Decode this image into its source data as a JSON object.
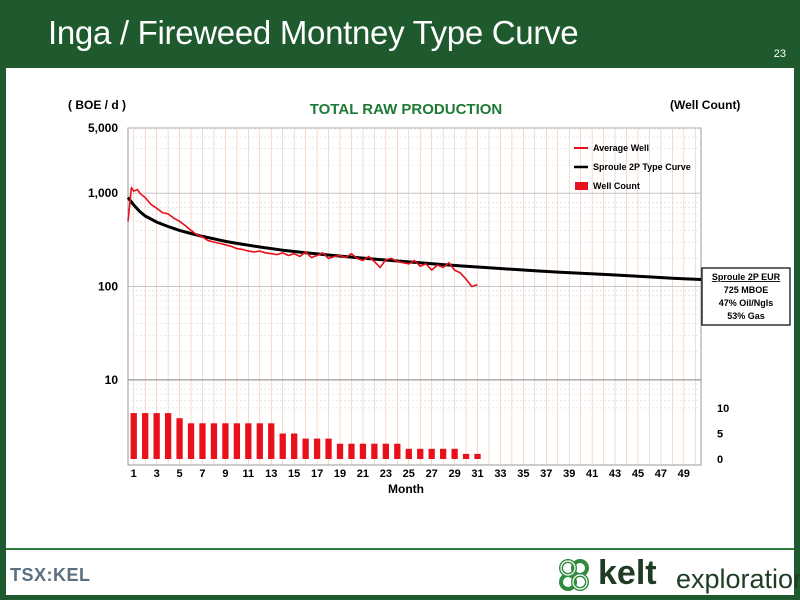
{
  "slide": {
    "title": "Inga / Fireweed Montney Type Curve",
    "page_number": "23"
  },
  "chart_data": {
    "type": "line",
    "title": "TOTAL RAW PRODUCTION",
    "ylabel": "( BOE / d )",
    "y2label": "(Well Count)",
    "xlabel": "Month",
    "y_scale": "log",
    "ylim": [
      4,
      5000
    ],
    "y_tick_labels": [
      "5,000",
      "1,000",
      "100",
      "10"
    ],
    "y_tick_values": [
      5000,
      1000,
      100,
      10
    ],
    "y2_tick_labels": [
      "10",
      "5",
      "0"
    ],
    "y2_tick_values": [
      10,
      5,
      0
    ],
    "y2lim": [
      0,
      10
    ],
    "x_tick_labels": [
      "1",
      "3",
      "5",
      "7",
      "9",
      "11",
      "13",
      "15",
      "17",
      "19",
      "21",
      "23",
      "25",
      "27",
      "29",
      "31",
      "33",
      "35",
      "37",
      "39",
      "41",
      "43",
      "45",
      "47",
      "49"
    ],
    "xlim": [
      0.5,
      50.5
    ],
    "grid": true,
    "legend_position": "top-right",
    "legend": [
      {
        "label": "Average Well",
        "type": "line",
        "color": "#e8101a"
      },
      {
        "label": "Sproule 2P Type Curve",
        "type": "line",
        "color": "#000000"
      },
      {
        "label": "Well Count",
        "type": "bar",
        "color": "#e8101a"
      }
    ],
    "series": [
      {
        "name": "Sproule 2P Type Curve",
        "type": "line",
        "color": "#000000",
        "x": [
          0.5,
          1,
          1.5,
          2,
          3,
          4,
          5,
          6,
          7,
          8,
          9,
          10,
          12,
          14,
          16,
          18,
          20,
          22,
          24,
          26,
          28,
          30,
          32,
          34,
          36,
          38,
          40,
          42,
          44,
          46,
          48,
          50.5
        ],
        "values": [
          900,
          750,
          640,
          570,
          490,
          440,
          400,
          370,
          345,
          325,
          305,
          290,
          265,
          245,
          230,
          218,
          207,
          197,
          188,
          180,
          172,
          165,
          159,
          153,
          148,
          143,
          139,
          135,
          131,
          127,
          123,
          119
        ]
      },
      {
        "name": "Average Well",
        "type": "line",
        "color": "#e8101a",
        "x": [
          0.5,
          0.8,
          1,
          1.3,
          1.6,
          2,
          2.5,
          3,
          3.5,
          4,
          4.5,
          5,
          5.5,
          6,
          6.5,
          7,
          7.5,
          8,
          8.5,
          9,
          9.5,
          10,
          10.5,
          11,
          11.5,
          12,
          12.5,
          13,
          13.5,
          14,
          14.5,
          15,
          15.5,
          16,
          16.5,
          17,
          17.5,
          18,
          18.5,
          19,
          19.5,
          20,
          20.5,
          21,
          21.5,
          22,
          22.5,
          23,
          23.5,
          24,
          24.5,
          25,
          25.5,
          26,
          26.5,
          27,
          27.5,
          28,
          28.5,
          29,
          29.5,
          30,
          30.5,
          31
        ],
        "values": [
          500,
          1150,
          1050,
          1100,
          980,
          900,
          760,
          690,
          620,
          600,
          540,
          500,
          450,
          400,
          360,
          340,
          310,
          300,
          290,
          280,
          270,
          255,
          250,
          240,
          235,
          240,
          230,
          225,
          220,
          230,
          215,
          225,
          210,
          235,
          205,
          215,
          230,
          200,
          210,
          215,
          205,
          225,
          200,
          190,
          210,
          185,
          160,
          195,
          200,
          185,
          180,
          175,
          190,
          165,
          175,
          150,
          170,
          160,
          180,
          150,
          140,
          120,
          100,
          105
        ]
      },
      {
        "name": "Well Count",
        "type": "bar",
        "axis": "y2",
        "color": "#e8101a",
        "x": [
          1,
          2,
          3,
          4,
          5,
          6,
          7,
          8,
          9,
          10,
          11,
          12,
          13,
          14,
          15,
          16,
          17,
          18,
          19,
          20,
          21,
          22,
          23,
          24,
          25,
          26,
          27,
          28,
          29,
          30,
          31
        ],
        "values": [
          9,
          9,
          9,
          9,
          8,
          7,
          7,
          7,
          7,
          7,
          7,
          7,
          7,
          5,
          5,
          4,
          4,
          4,
          3,
          3,
          3,
          3,
          3,
          3,
          2,
          2,
          2,
          2,
          2,
          1,
          1
        ]
      }
    ],
    "annotation": {
      "lines": [
        "Sproule 2P EUR",
        "725 MBOE",
        "47% Oil/Ngls",
        "53% Gas"
      ]
    }
  },
  "footer": {
    "tsx_text": "TSX:KEL",
    "company_name": "kelt",
    "company_suffix": "exploration",
    "logo_icon": "celtic-knot-icon",
    "brand_green": "#1e5a2d"
  }
}
